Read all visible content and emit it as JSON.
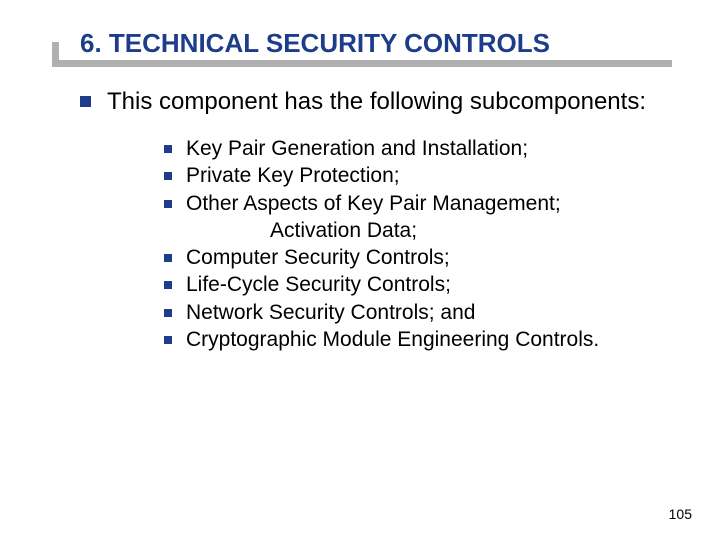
{
  "slide": {
    "title": "6. TECHNICAL SECURITY CONTROLS",
    "intro": "This component has the following subcomponents:",
    "items": {
      "i0": "Key Pair Generation and Installation;",
      "i1": "Private Key Protection;",
      "i2": "Other Aspects of Key Pair Management;",
      "i2b": "Activation Data;",
      "i3": "Computer Security Controls;",
      "i4": "Life-Cycle Security Controls;",
      "i5": "Network Security Controls; and",
      "i6": "Cryptographic Module Engineering Controls."
    },
    "page": "105"
  },
  "colors": {
    "title_color": "#1d3c8a",
    "bullet_color": "#1d3c8a",
    "shadow_color": "#b0b0b0",
    "text_color": "#000000",
    "background_color": "#ffffff"
  },
  "typography": {
    "title_fontsize": 26,
    "intro_fontsize": 24,
    "item_fontsize": 21,
    "page_fontsize": 14,
    "font_family": "Verdana"
  }
}
